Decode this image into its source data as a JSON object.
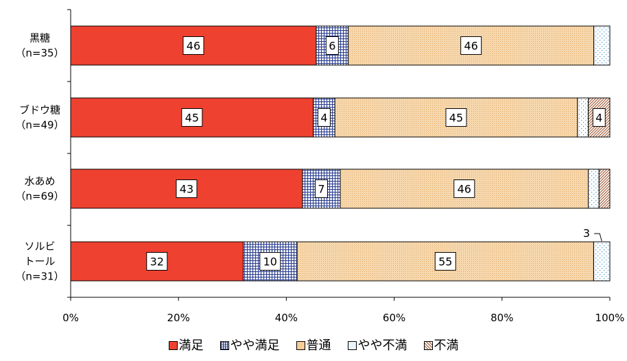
{
  "chart_data": {
    "type": "bar",
    "orientation": "horizontal",
    "stacked": true,
    "percent": true,
    "categories": [
      [
        "黒糖",
        "（n=35）"
      ],
      [
        "ブドウ糖",
        "（n=49）"
      ],
      [
        "水あめ",
        "（n=69）"
      ],
      [
        "ソルビ",
        "トール",
        "（n=31）"
      ]
    ],
    "series": [
      {
        "name": "満足",
        "values": [
          46,
          45,
          43,
          32
        ],
        "color": "#ee4130",
        "pattern": "solid"
      },
      {
        "name": "やや満足",
        "values": [
          6,
          4,
          7,
          10
        ],
        "color": "#2b3f91",
        "pattern": "grid"
      },
      {
        "name": "普通",
        "values": [
          46,
          45,
          46,
          55
        ],
        "color": "#f8cc96",
        "pattern": "dots"
      },
      {
        "name": "やや不満",
        "values": [
          3,
          2,
          2,
          3
        ],
        "color": "#2f8fc6",
        "pattern": "sparse-dots"
      },
      {
        "name": "不満",
        "values": [
          0,
          4,
          2,
          0
        ],
        "color": "#9a4a22",
        "pattern": "diagonal"
      }
    ],
    "data_labels": [
      [
        46,
        6,
        46,
        null,
        null
      ],
      [
        45,
        4,
        45,
        null,
        4
      ],
      [
        43,
        7,
        46,
        null,
        null
      ],
      [
        32,
        10,
        55,
        3,
        null
      ]
    ],
    "x_ticks": [
      "0%",
      "20%",
      "40%",
      "60%",
      "80%",
      "100%"
    ],
    "xlim": [
      0,
      100
    ],
    "grid": false,
    "legend_position": "bottom"
  }
}
